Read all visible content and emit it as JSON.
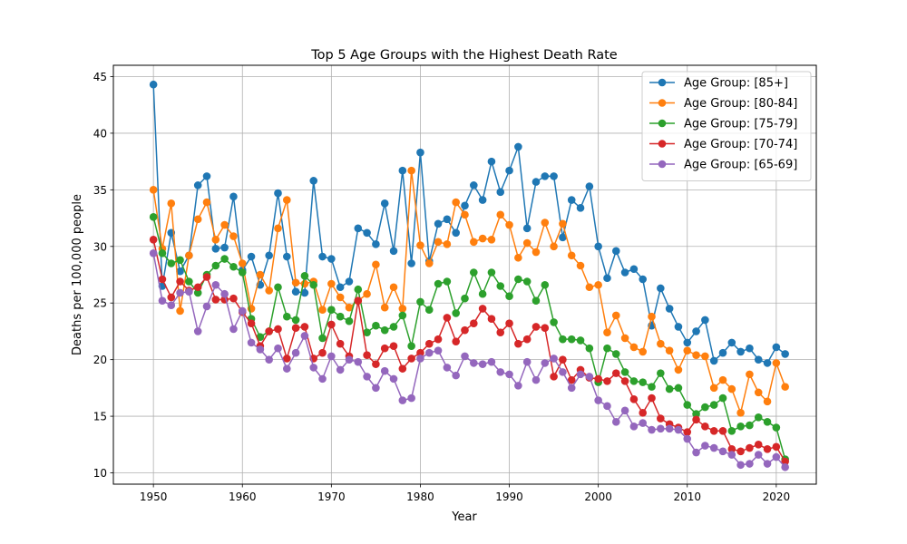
{
  "chart_data": {
    "type": "line",
    "title": "Top 5 Age Groups with the Highest Death Rate",
    "xlabel": "Year",
    "ylabel": "Deaths per 100,000 people",
    "xlim": [
      1945.5,
      2024.5
    ],
    "ylim": [
      9,
      46
    ],
    "xticks": [
      1950,
      1960,
      1970,
      1980,
      1990,
      2000,
      2010,
      2020
    ],
    "yticks": [
      10,
      15,
      20,
      25,
      30,
      35,
      40,
      45
    ],
    "grid": true,
    "legend_position": "top-right",
    "x": [
      1950,
      1951,
      1952,
      1953,
      1954,
      1955,
      1956,
      1957,
      1958,
      1959,
      1960,
      1961,
      1962,
      1963,
      1964,
      1965,
      1966,
      1967,
      1968,
      1969,
      1970,
      1971,
      1972,
      1973,
      1974,
      1975,
      1976,
      1977,
      1978,
      1979,
      1980,
      1981,
      1982,
      1983,
      1984,
      1985,
      1986,
      1987,
      1988,
      1989,
      1990,
      1991,
      1992,
      1993,
      1994,
      1995,
      1996,
      1997,
      1998,
      1999,
      2000,
      2001,
      2002,
      2003,
      2004,
      2005,
      2006,
      2007,
      2008,
      2009,
      2010,
      2011,
      2012,
      2013,
      2014,
      2015,
      2016,
      2017,
      2018,
      2019,
      2020,
      2021
    ],
    "series": [
      {
        "name": "Age Group: [85+]",
        "color": "#1f77b4",
        "values": [
          44.3,
          26.5,
          31.2,
          27.8,
          29.2,
          35.4,
          36.2,
          29.8,
          29.9,
          34.4,
          27.9,
          29.1,
          26.6,
          29.2,
          34.7,
          29.1,
          26.0,
          25.9,
          35.8,
          29.1,
          28.9,
          26.4,
          26.9,
          31.6,
          31.2,
          30.2,
          33.8,
          29.6,
          36.7,
          28.5,
          38.3,
          28.7,
          32.0,
          32.4,
          31.2,
          33.6,
          35.4,
          34.1,
          37.5,
          34.8,
          36.7,
          38.8,
          31.6,
          35.7,
          36.2,
          36.2,
          30.8,
          34.1,
          33.4,
          35.3,
          30.0,
          27.2,
          29.6,
          27.7,
          28.0,
          27.1,
          23.0,
          26.3,
          24.5,
          22.9,
          21.5,
          22.5,
          23.5,
          19.9,
          20.6,
          21.5,
          20.7,
          21.0,
          20.0,
          19.7,
          21.1,
          20.5
        ]
      },
      {
        "name": "Age Group: [80-84]",
        "color": "#ff7f0e",
        "values": [
          35.0,
          29.8,
          33.8,
          24.3,
          29.2,
          32.4,
          33.9,
          30.6,
          31.9,
          30.9,
          28.5,
          24.5,
          27.5,
          26.1,
          31.6,
          34.1,
          26.8,
          26.7,
          26.9,
          24.4,
          26.7,
          25.5,
          24.6,
          25.2,
          25.8,
          28.4,
          24.6,
          26.4,
          24.5,
          36.7,
          30.1,
          28.5,
          30.4,
          30.2,
          33.9,
          32.8,
          30.4,
          30.7,
          30.6,
          32.8,
          31.9,
          29.0,
          30.3,
          29.5,
          32.1,
          30.0,
          32.0,
          29.2,
          28.3,
          26.4,
          26.6,
          22.4,
          23.9,
          21.9,
          21.1,
          20.7,
          23.8,
          21.4,
          20.8,
          19.1,
          20.8,
          20.4,
          20.3,
          17.5,
          18.2,
          17.4,
          15.3,
          18.7,
          17.1,
          16.3,
          19.7,
          17.6
        ]
      },
      {
        "name": "Age Group: [75-79]",
        "color": "#2ca02c",
        "values": [
          32.6,
          29.4,
          28.5,
          28.8,
          26.9,
          25.9,
          27.5,
          28.3,
          28.9,
          28.2,
          27.7,
          23.6,
          22.0,
          22.5,
          26.4,
          23.8,
          23.5,
          27.4,
          26.6,
          21.9,
          24.4,
          23.8,
          23.4,
          26.2,
          22.4,
          23.0,
          22.6,
          22.9,
          23.9,
          21.2,
          25.1,
          24.4,
          26.7,
          26.9,
          24.1,
          25.4,
          27.7,
          25.8,
          27.7,
          26.5,
          25.6,
          27.1,
          26.9,
          25.2,
          26.6,
          23.3,
          21.8,
          21.8,
          21.7,
          21.0,
          18.0,
          21.0,
          20.5,
          18.9,
          18.1,
          18.0,
          17.6,
          18.8,
          17.4,
          17.5,
          16.0,
          15.2,
          15.8,
          16.0,
          16.6,
          13.7,
          14.1,
          14.2,
          14.9,
          14.5,
          14.0,
          11.2
        ]
      },
      {
        "name": "Age Group: [70-74]",
        "color": "#d62728",
        "values": [
          30.6,
          27.1,
          25.5,
          26.9,
          26.1,
          26.4,
          27.3,
          25.3,
          25.3,
          25.4,
          24.2,
          23.2,
          21.2,
          22.5,
          22.7,
          20.1,
          22.8,
          22.9,
          20.1,
          20.6,
          23.1,
          21.4,
          20.3,
          25.2,
          20.4,
          19.6,
          21.0,
          21.2,
          19.2,
          20.1,
          20.6,
          21.4,
          21.8,
          23.7,
          21.6,
          22.6,
          23.2,
          24.5,
          23.6,
          22.4,
          23.2,
          21.4,
          21.8,
          22.9,
          22.8,
          18.5,
          20.0,
          18.2,
          19.1,
          18.4,
          18.3,
          18.1,
          18.8,
          18.1,
          16.5,
          15.3,
          16.6,
          14.8,
          14.3,
          14.0,
          13.6,
          14.7,
          14.1,
          13.7,
          13.7,
          12.1,
          11.9,
          12.2,
          12.5,
          12.1,
          12.3,
          11.0
        ]
      },
      {
        "name": "Age Group: [65-69]",
        "color": "#9467bd",
        "values": [
          29.4,
          25.2,
          24.8,
          25.9,
          26.0,
          22.5,
          24.7,
          26.6,
          25.8,
          22.7,
          24.3,
          21.5,
          20.9,
          20.0,
          21.0,
          19.2,
          20.6,
          22.1,
          19.3,
          18.3,
          20.3,
          19.1,
          20.0,
          19.8,
          18.5,
          17.5,
          19.0,
          18.3,
          16.4,
          16.6,
          20.1,
          20.6,
          20.8,
          19.3,
          18.6,
          20.3,
          19.7,
          19.6,
          19.8,
          18.9,
          18.7,
          17.7,
          19.8,
          18.2,
          19.7,
          20.1,
          18.9,
          17.5,
          18.7,
          18.5,
          16.4,
          15.9,
          14.5,
          15.5,
          14.1,
          14.4,
          13.8,
          13.9,
          13.9,
          13.8,
          13.0,
          11.8,
          12.4,
          12.2,
          11.9,
          11.6,
          10.7,
          10.8,
          11.6,
          10.8,
          11.4,
          10.5
        ]
      }
    ]
  }
}
